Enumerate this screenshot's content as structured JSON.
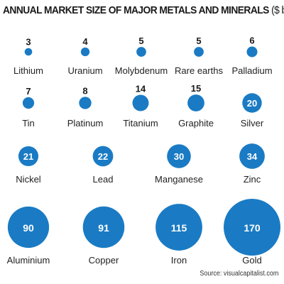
{
  "chart_data": {
    "type": "bubble",
    "title": "ANNUAL MARKET SIZE OF MAJOR METALS AND MINERALS",
    "unit": "($ bn)",
    "color": "#1a7bc4",
    "categories": [
      "Lithium",
      "Uranium",
      "Molybdenum",
      "Rare earths",
      "Palladium",
      "Tin",
      "Platinum",
      "Titanium",
      "Graphite",
      "Silver",
      "Nickel",
      "Lead",
      "Manganese",
      "Zinc",
      "Aluminium",
      "Copper",
      "Iron",
      "Gold"
    ],
    "values": [
      3,
      4,
      5,
      5,
      6,
      7,
      8,
      14,
      15,
      20,
      21,
      22,
      30,
      34,
      90,
      91,
      115,
      170
    ]
  },
  "source": "Source: visualcapitalist.com"
}
